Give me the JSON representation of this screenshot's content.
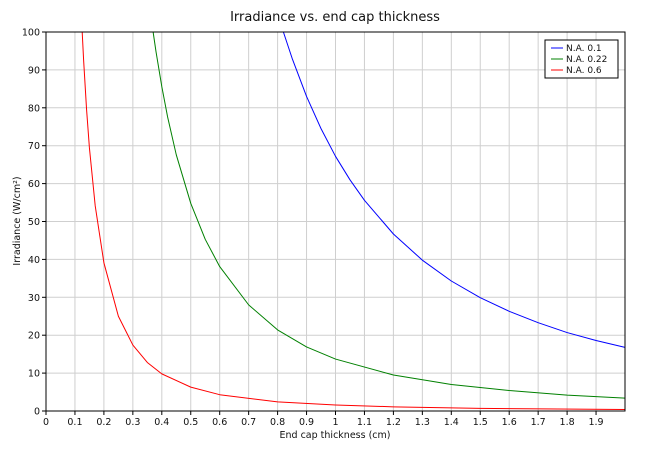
{
  "chart_data": {
    "type": "line",
    "title": "Irradiance vs. end cap thickness",
    "xlabel": "End cap thickness (cm)",
    "ylabel": "Irradiance (W/cm²)",
    "xlim": [
      0,
      2
    ],
    "ylim": [
      0,
      100
    ],
    "x_ticks": [
      "0",
      "0.1",
      "0.2",
      "0.3",
      "0.4",
      "0.5",
      "0.6",
      "0.7",
      "0.8",
      "0.9",
      "1",
      "1.1",
      "1.2",
      "1.3",
      "1.4",
      "1.5",
      "1.6",
      "1.7",
      "1.8",
      "1.9"
    ],
    "y_ticks": [
      "0",
      "10",
      "20",
      "30",
      "40",
      "50",
      "60",
      "70",
      "80",
      "90",
      "100"
    ],
    "grid": true,
    "legend_position": "top-right",
    "series": [
      {
        "name": "N.A. 0.1",
        "color": "#0000ff",
        "x": [
          0.82,
          0.85,
          0.9,
          0.95,
          1.0,
          1.05,
          1.1,
          1.2,
          1.3,
          1.4,
          1.5,
          1.6,
          1.7,
          1.8,
          1.9,
          2.0
        ],
        "y": [
          100,
          93.1,
          83.0,
          74.5,
          67.2,
          61.0,
          55.6,
          46.7,
          39.8,
          34.3,
          29.9,
          26.3,
          23.3,
          20.7,
          18.6,
          16.8
        ]
      },
      {
        "name": "N.A. 0.22",
        "color": "#008000",
        "x": [
          0.37,
          0.38,
          0.4,
          0.42,
          0.45,
          0.5,
          0.55,
          0.6,
          0.7,
          0.8,
          0.9,
          1.0,
          1.2,
          1.4,
          1.6,
          1.8,
          2.0
        ],
        "y": [
          100,
          94.8,
          85.6,
          77.6,
          67.6,
          54.8,
          45.3,
          38.1,
          28.0,
          21.4,
          16.9,
          13.7,
          9.5,
          7.0,
          5.4,
          4.2,
          3.4
        ]
      },
      {
        "name": "N.A. 0.6",
        "color": "#ff0000",
        "x": [
          0.125,
          0.13,
          0.14,
          0.15,
          0.17,
          0.2,
          0.25,
          0.3,
          0.35,
          0.4,
          0.5,
          0.6,
          0.8,
          1.0,
          1.2,
          1.5,
          2.0
        ],
        "y": [
          100,
          92.5,
          79.7,
          69.4,
          54.1,
          39.1,
          25.0,
          17.4,
          12.8,
          9.8,
          6.3,
          4.3,
          2.4,
          1.6,
          1.1,
          0.7,
          0.4
        ]
      }
    ]
  }
}
